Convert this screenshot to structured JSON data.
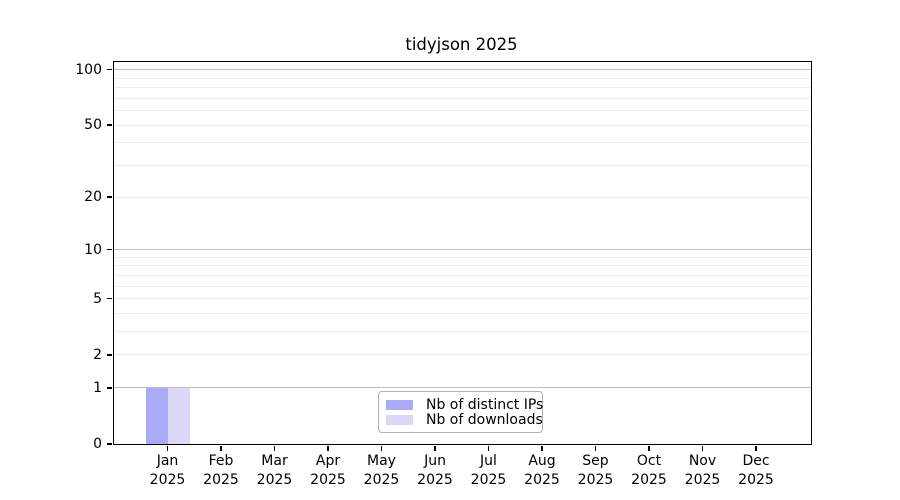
{
  "chart_data": {
    "type": "bar",
    "title": "tidyjson 2025",
    "categories": [
      "Jan",
      "Feb",
      "Mar",
      "Apr",
      "May",
      "Jun",
      "Jul",
      "Aug",
      "Sep",
      "Oct",
      "Nov",
      "Dec"
    ],
    "x_year_label": "2025",
    "series": [
      {
        "name": "Nb of distinct IPs",
        "color": "#aaaaf8",
        "values": [
          1,
          0,
          0,
          0,
          0,
          0,
          0,
          0,
          0,
          0,
          0,
          0
        ]
      },
      {
        "name": "Nb of downloads",
        "color": "#dadaf8",
        "values": [
          1,
          0,
          0,
          0,
          0,
          0,
          0,
          0,
          0,
          0,
          0,
          0
        ]
      }
    ],
    "y_scale": "log10(1+x)",
    "y_ticks": [
      0,
      1,
      2,
      5,
      10,
      20,
      50,
      100
    ],
    "ylim": [
      0,
      110
    ],
    "grid_values_minor": [
      2,
      3,
      4,
      5,
      6,
      7,
      8,
      9,
      20,
      30,
      40,
      50,
      60,
      70,
      80,
      90
    ],
    "grid_values_major": [
      1,
      10,
      100
    ],
    "grid": true,
    "legend_position": "bottom-center",
    "colors": {
      "grid_minor": "#ececec",
      "grid_major": "#bdbdbd",
      "spine": "#000000"
    }
  }
}
